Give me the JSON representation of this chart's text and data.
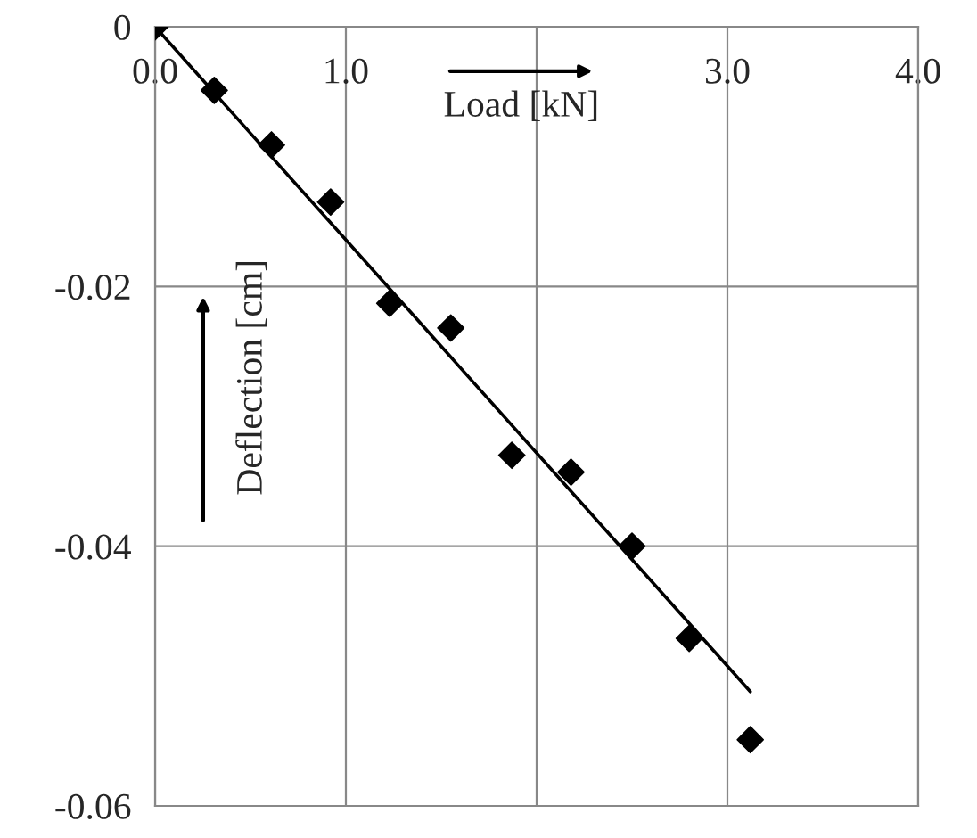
{
  "chart_data": {
    "type": "scatter",
    "xlabel": "Load [kN]",
    "ylabel": "Deflection [cm]",
    "series": [
      {
        "color": "#000000",
        "marker": "diamond",
        "x": [
          0,
          0.31,
          0.61,
          0.92,
          1.23,
          1.55,
          1.87,
          2.18,
          2.5,
          2.8,
          3.12
        ],
        "values": [
          0,
          -0.0049,
          -0.0091,
          -0.0135,
          -0.0213,
          -0.0232,
          -0.033,
          -0.0343,
          -0.04,
          -0.0471,
          -0.0549
        ]
      },
      {
        "type": "line",
        "color": "#000000",
        "marker": "none",
        "line_style": "solid",
        "x": [
          0,
          3.12
        ],
        "values": [
          0,
          -0.0512
        ]
      }
    ],
    "xlim": [
      0,
      4
    ],
    "ylim": [
      -0.06,
      0
    ],
    "xticks": [
      {
        "value": 0,
        "label": "0.0"
      },
      {
        "value": 1,
        "label": "1.0"
      },
      {
        "value": 2,
        "label": null
      },
      {
        "value": 3,
        "label": "3.0"
      },
      {
        "value": 4,
        "label": "4.0"
      }
    ],
    "yticks": [
      -0.06,
      -0.04,
      -0.02,
      0
    ],
    "grid": true
  }
}
